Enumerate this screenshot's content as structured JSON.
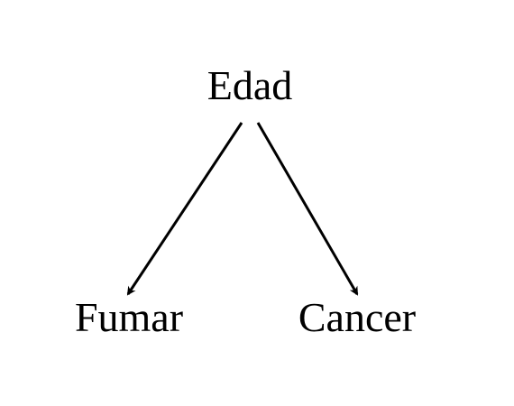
{
  "diagram": {
    "nodes": [
      {
        "id": "edad",
        "label": "Edad"
      },
      {
        "id": "fumar",
        "label": "Fumar"
      },
      {
        "id": "cancer",
        "label": "Cancer"
      }
    ],
    "edges": [
      {
        "from": "edad",
        "to": "fumar"
      },
      {
        "from": "edad",
        "to": "cancer"
      }
    ],
    "colors": {
      "text": "#000000",
      "edge": "#000000",
      "background": "#ffffff"
    }
  }
}
